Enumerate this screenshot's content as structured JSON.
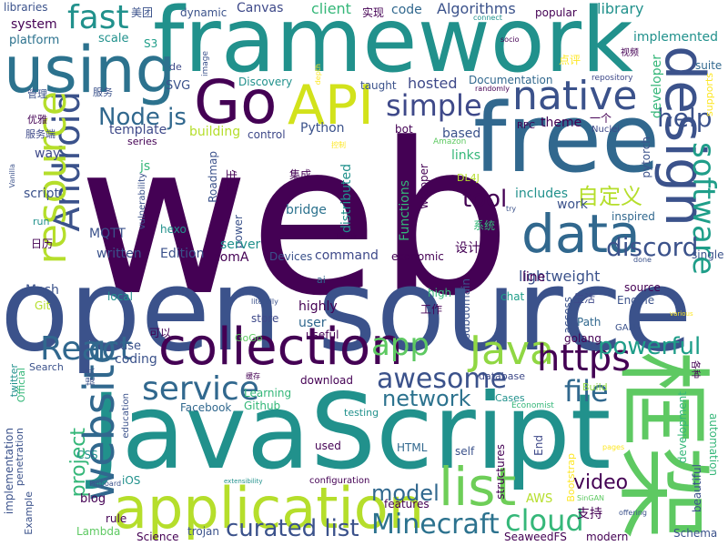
{
  "words": [
    {
      "text": "web",
      "color": "#440154"
    },
    {
      "text": "open source",
      "color": "#3b528b"
    },
    {
      "text": "JavaScript",
      "color": "#21918c"
    },
    {
      "text": "framework",
      "color": "#21918c"
    },
    {
      "text": "框架",
      "color": "#5ec962"
    },
    {
      "text": "free",
      "color": "#31688e"
    },
    {
      "text": "application",
      "color": "#b5de2b"
    },
    {
      "text": "using",
      "color": "#2c728e"
    },
    {
      "text": "design",
      "color": "#3b528b"
    },
    {
      "text": "Go",
      "color": "#440154"
    },
    {
      "text": "API",
      "color": "#d2e21b"
    },
    {
      "text": "Android",
      "color": "#3b528b"
    },
    {
      "text": "data",
      "color": "#31688e"
    },
    {
      "text": "collection",
      "color": "#440154"
    },
    {
      "text": "native",
      "color": "#3b528b"
    },
    {
      "text": "resource",
      "color": "#b5de2b"
    },
    {
      "text": "website",
      "color": "#31688e"
    },
    {
      "text": "list",
      "color": "#6ece58"
    },
    {
      "text": "software",
      "color": "#1f9e89"
    },
    {
      "text": "Java",
      "color": "#90d743"
    },
    {
      "text": "https",
      "color": "#440154"
    },
    {
      "text": "React",
      "color": "#31688e"
    },
    {
      "text": "service",
      "color": "#31688e"
    },
    {
      "text": "fast",
      "color": "#21918c"
    },
    {
      "text": "simple",
      "color": "#3e4989"
    },
    {
      "text": "awesome",
      "color": "#3b528b"
    },
    {
      "text": "app",
      "color": "#5ec962"
    },
    {
      "text": "Minecraft",
      "color": "#2c728e"
    },
    {
      "text": "curated list",
      "color": "#3b528b"
    },
    {
      "text": "cloud",
      "color": "#35b779"
    },
    {
      "text": "file",
      "color": "#31688e"
    },
    {
      "text": "discord",
      "color": "#3b528b"
    },
    {
      "text": "Node js",
      "color": "#31688e"
    },
    {
      "text": "help",
      "color": "#3b528b"
    },
    {
      "text": "powerful",
      "color": "#1f9e89"
    },
    {
      "text": "network",
      "color": "#2c728e"
    },
    {
      "text": "model",
      "color": "#31688e"
    },
    {
      "text": "project",
      "color": "#35b779"
    },
    {
      "text": "tool",
      "color": "#440154"
    },
    {
      "text": "自定义",
      "color": "#b5de2b"
    },
    {
      "text": "video",
      "color": "#440154"
    },
    {
      "text": "library",
      "color": "#21918c"
    },
    {
      "text": "Canvas",
      "color": "#3e4989"
    },
    {
      "text": "client",
      "color": "#35b779"
    },
    {
      "text": "Algorithms",
      "color": "#3b528b"
    },
    {
      "text": "code",
      "color": "#31688e"
    },
    {
      "text": "implemented",
      "color": "#21918c"
    },
    {
      "text": "lightweight",
      "color": "#3b528b"
    },
    {
      "text": "hosted",
      "color": "#3e4989"
    },
    {
      "text": "Documentation",
      "color": "#31688e"
    },
    {
      "text": "developer",
      "color": "#35b779"
    },
    {
      "text": "dynamic",
      "color": "#3b528b"
    },
    {
      "text": "popular",
      "color": "#440154"
    },
    {
      "text": "system",
      "color": "#440154"
    },
    {
      "text": "platform",
      "color": "#2c728e"
    },
    {
      "text": "libraries",
      "color": "#3b528b"
    },
    {
      "text": "scale",
      "color": "#21918c"
    },
    {
      "text": "S3",
      "color": "#1f9e89"
    },
    {
      "text": "美团",
      "color": "#3b528b"
    },
    {
      "text": "实现",
      "color": "#440154"
    },
    {
      "text": "connect",
      "color": "#21918c"
    },
    {
      "text": "socio",
      "color": "#440154"
    },
    {
      "text": "视频",
      "color": "#440154"
    },
    {
      "text": "点评",
      "color": "#fde725"
    },
    {
      "text": "suite",
      "color": "#31688e"
    },
    {
      "text": "supports",
      "color": "#fde725"
    },
    {
      "text": "Discovery",
      "color": "#21918c"
    },
    {
      "text": "taught",
      "color": "#3b528b"
    },
    {
      "text": "repository",
      "color": "#3e4989"
    },
    {
      "text": "randomly",
      "color": "#440154"
    },
    {
      "text": "SVG",
      "color": "#3b528b"
    },
    {
      "text": "template",
      "color": "#3e4989"
    },
    {
      "text": "series",
      "color": "#440154"
    },
    {
      "text": "building",
      "color": "#b5de2b"
    },
    {
      "text": "control",
      "color": "#3e4989"
    },
    {
      "text": "Python",
      "color": "#3b528b"
    },
    {
      "text": "bot",
      "color": "#440154"
    },
    {
      "text": "based",
      "color": "#3b528b"
    },
    {
      "text": "Amazon",
      "color": "#5ec962"
    },
    {
      "text": "links",
      "color": "#35b779"
    },
    {
      "text": "RPC",
      "color": "#440154"
    },
    {
      "text": "theme",
      "color": "#440154"
    },
    {
      "text": "一个",
      "color": "#440154"
    },
    {
      "text": "Nuclei",
      "color": "#3e4989"
    },
    {
      "text": "way",
      "color": "#3e4989"
    },
    {
      "text": "script",
      "color": "#3b528b"
    },
    {
      "text": "js",
      "color": "#35b779"
    },
    {
      "text": "Roadmap",
      "color": "#3b528b"
    },
    {
      "text": "生成",
      "color": "#440154"
    },
    {
      "text": "集成",
      "color": "#440154"
    },
    {
      "text": "DL4J",
      "color": "#b5de2b"
    },
    {
      "text": "wrapper",
      "color": "#440154"
    },
    {
      "text": "pytorch",
      "color": "#3b528b"
    },
    {
      "text": "distributed",
      "color": "#21918c"
    },
    {
      "text": "Functions",
      "color": "#35b779"
    },
    {
      "text": "bridge",
      "color": "#2c728e"
    },
    {
      "text": "includes",
      "color": "#21918c"
    },
    {
      "text": "work",
      "color": "#3b528b"
    },
    {
      "text": "inspired",
      "color": "#31688e"
    },
    {
      "text": "系统",
      "color": "#35b779"
    },
    {
      "text": "设计",
      "color": "#440154"
    },
    {
      "text": "MQTT",
      "color": "#3b528b"
    },
    {
      "text": "hexo",
      "color": "#21918c"
    },
    {
      "text": "power",
      "color": "#3b528b"
    },
    {
      "text": "server",
      "color": "#21918c"
    },
    {
      "text": "日历",
      "color": "#440154"
    },
    {
      "text": "written",
      "color": "#3b528b"
    },
    {
      "text": "Edition",
      "color": "#3b528b"
    },
    {
      "text": "comA",
      "color": "#440154"
    },
    {
      "text": "Devices",
      "color": "#3b528b"
    },
    {
      "text": "command",
      "color": "#3e4989"
    },
    {
      "text": "economic",
      "color": "#440154"
    },
    {
      "text": "done",
      "color": "#3b528b"
    },
    {
      "text": "single",
      "color": "#3b528b"
    },
    {
      "text": "Mesh",
      "color": "#3b528b"
    },
    {
      "text": "Git",
      "color": "#b5de2b"
    },
    {
      "text": "local",
      "color": "#21918c"
    },
    {
      "text": "literally",
      "color": "#3b528b"
    },
    {
      "text": "highly",
      "color": "#440154"
    },
    {
      "text": "store",
      "color": "#3e4989"
    },
    {
      "text": "user",
      "color": "#31688e"
    },
    {
      "text": "useful",
      "color": "#440154"
    },
    {
      "text": "high",
      "color": "#35b779"
    },
    {
      "text": "chat",
      "color": "#1f9e89"
    },
    {
      "text": "subdomain",
      "color": "#3b528b"
    },
    {
      "text": "line",
      "color": "#440154"
    },
    {
      "text": "access",
      "color": "#3b528b"
    },
    {
      "text": "工作",
      "color": "#440154"
    },
    {
      "text": "生活",
      "color": "#3e4989"
    },
    {
      "text": "source",
      "color": "#440154"
    },
    {
      "text": "Engine",
      "color": "#3b528b"
    },
    {
      "text": "various",
      "color": "#fde725"
    },
    {
      "text": "Path",
      "color": "#31688e"
    },
    {
      "text": "golang",
      "color": "#440154"
    },
    {
      "text": "GAN",
      "color": "#3b528b"
    },
    {
      "text": "可以",
      "color": "#440154"
    },
    {
      "text": "GoGo",
      "color": "#5ec962"
    },
    {
      "text": "use",
      "color": "#3b528b"
    },
    {
      "text": "coding",
      "color": "#3b528b"
    },
    {
      "text": "twitter",
      "color": "#21918c"
    },
    {
      "text": "Search",
      "color": "#3b528b"
    },
    {
      "text": "Official",
      "color": "#35b779"
    },
    {
      "text": "Learning",
      "color": "#35b779"
    },
    {
      "text": "Facebook",
      "color": "#31688e"
    },
    {
      "text": "Github",
      "color": "#35b779"
    },
    {
      "text": "download",
      "color": "#440154"
    },
    {
      "text": "database",
      "color": "#3e4989"
    },
    {
      "text": "Build",
      "color": "#90d743"
    },
    {
      "text": "Cases",
      "color": "#21918c"
    },
    {
      "text": "Economist",
      "color": "#35b779"
    },
    {
      "text": "testing",
      "color": "#21918c"
    },
    {
      "text": "education",
      "color": "#3b528b"
    },
    {
      "text": "automation",
      "color": "#35b779"
    },
    {
      "text": "development",
      "color": "#35b779"
    },
    {
      "text": "beautiful",
      "color": "#3b528b"
    },
    {
      "text": "Bootstrap",
      "color": "#fde725"
    },
    {
      "text": "End",
      "color": "#3e4989"
    },
    {
      "text": "structures",
      "color": "#440154"
    },
    {
      "text": "self",
      "color": "#3b528b"
    },
    {
      "text": "HTML",
      "color": "#31688e"
    },
    {
      "text": "used",
      "color": "#440154"
    },
    {
      "text": "CSS",
      "color": "#21918c"
    },
    {
      "text": "implementation",
      "color": "#3b528b"
    },
    {
      "text": "penetration",
      "color": "#3b528b"
    },
    {
      "text": "Example",
      "color": "#3b528b"
    },
    {
      "text": "blog",
      "color": "#440154"
    },
    {
      "text": "iOS",
      "color": "#21918c"
    },
    {
      "text": "Pinboard",
      "color": "#3b528b"
    },
    {
      "text": "configuration",
      "color": "#440154"
    },
    {
      "text": "features",
      "color": "#440154"
    },
    {
      "text": "pages",
      "color": "#fde725"
    },
    {
      "text": "SinGAN",
      "color": "#5ec962"
    },
    {
      "text": "AWS",
      "color": "#b5de2b"
    },
    {
      "text": "rule",
      "color": "#440154"
    },
    {
      "text": "Lambda",
      "color": "#5ec962"
    },
    {
      "text": "Science",
      "color": "#440154"
    },
    {
      "text": "trojan",
      "color": "#3b528b"
    },
    {
      "text": "modern",
      "color": "#440154"
    },
    {
      "text": "SeaweedFS",
      "color": "#440154"
    },
    {
      "text": "支持",
      "color": "#440154"
    },
    {
      "text": "Schema",
      "color": "#3b528b"
    },
    {
      "text": "管理",
      "color": "#3b528b"
    },
    {
      "text": "服务",
      "color": "#3b528b"
    },
    {
      "text": "优雅",
      "color": "#440154"
    },
    {
      "text": "服务端",
      "color": "#3e4989"
    },
    {
      "text": "de",
      "color": "#3e4989"
    },
    {
      "text": "image",
      "color": "#3b528b"
    },
    {
      "text": "ai",
      "color": "#31688e"
    },
    {
      "text": "run",
      "color": "#21918c"
    },
    {
      "text": "Vanilla",
      "color": "#3b528b"
    },
    {
      "text": "vulnerability",
      "color": "#3b528b"
    },
    {
      "text": "TikTok",
      "color": "#440154"
    },
    {
      "text": "try",
      "color": "#3b528b"
    },
    {
      "text": "depth",
      "color": "#fde725"
    },
    {
      "text": "控制",
      "color": "#fde725"
    },
    {
      "text": "offering",
      "color": "#3b528b"
    },
    {
      "text": "extensibility",
      "color": "#21918c"
    },
    {
      "text": "提供",
      "color": "#3b528b"
    },
    {
      "text": "各种",
      "color": "#440154"
    },
    {
      "text": "缓存",
      "color": "#440154"
    }
  ]
}
